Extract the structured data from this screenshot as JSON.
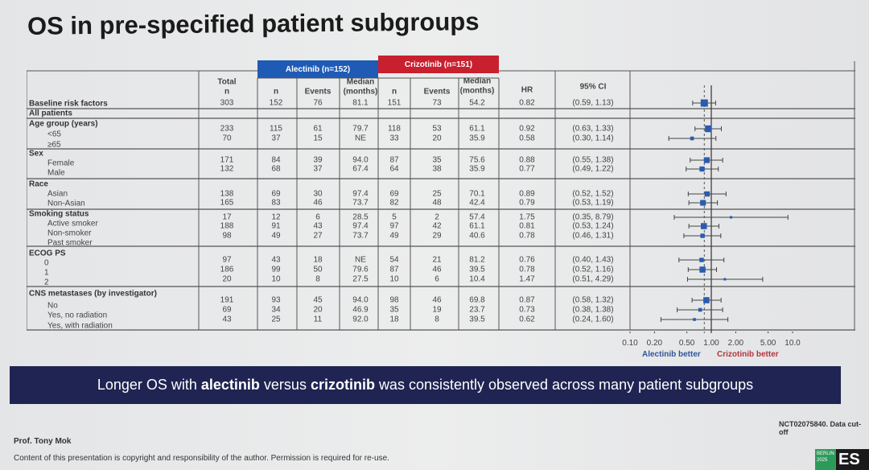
{
  "title": "OS in pre-specified patient subgroups",
  "table_headers": {
    "baseline": "Baseline risk factors",
    "total": "Total",
    "total_n": "n",
    "alectinib_arm": "Alectinib (n=152)",
    "crizotinib_arm": "Crizotinib (n=151)",
    "n": "n",
    "events": "Events",
    "median_1": "Median",
    "median_2": "(months)",
    "hr": "HR",
    "ci": "95% CI"
  },
  "colors": {
    "alectinib": "#1f5bb5",
    "crizotinib": "#c8202f",
    "banner": "#1f2452",
    "marker": "#2a5bb0"
  },
  "chart_data": {
    "type": "forest",
    "x_scale": "log",
    "xlim": [
      0.1,
      10
    ],
    "x_ticks": [
      "0.10",
      "0.20",
      "0.50",
      "1.00",
      "2.00",
      "5.00",
      "10.0"
    ],
    "reference_line": 1.0,
    "overall_hr_line": 0.82,
    "left_label": "Alectinib better",
    "right_label": "Crizotinib better",
    "groups": [
      {
        "label": "All patients",
        "rows": [
          {
            "label": "",
            "total": "303",
            "a_n": "152",
            "a_events": "76",
            "a_median": "81.1",
            "c_n": "151",
            "c_events": "73",
            "c_median": "54.2",
            "hr": 0.82,
            "hr_text": "0.82",
            "ci_low": 0.59,
            "ci_high": 1.13,
            "ci_text": "(0.59, 1.13)"
          }
        ]
      },
      {
        "label": "Age group (years)",
        "rows": [
          {
            "label": "<65",
            "total": "233",
            "a_n": "115",
            "a_events": "61",
            "a_median": "79.7",
            "c_n": "118",
            "c_events": "53",
            "c_median": "61.1",
            "hr": 0.92,
            "hr_text": "0.92",
            "ci_low": 0.63,
            "ci_high": 1.33,
            "ci_text": "(0.63, 1.33)"
          },
          {
            "label": "≥65",
            "total": "70",
            "a_n": "37",
            "a_events": "15",
            "a_median": "NE",
            "c_n": "33",
            "c_events": "20",
            "c_median": "35.9",
            "hr": 0.58,
            "hr_text": "0.58",
            "ci_low": 0.3,
            "ci_high": 1.14,
            "ci_text": "(0.30, 1.14)"
          }
        ]
      },
      {
        "label": "Sex",
        "rows": [
          {
            "label": "Female",
            "total": "171",
            "a_n": "84",
            "a_events": "39",
            "a_median": "94.0",
            "c_n": "87",
            "c_events": "35",
            "c_median": "75.6",
            "hr": 0.88,
            "hr_text": "0.88",
            "ci_low": 0.55,
            "ci_high": 1.38,
            "ci_text": "(0.55, 1.38)"
          },
          {
            "label": "Male",
            "total": "132",
            "a_n": "68",
            "a_events": "37",
            "a_median": "67.4",
            "c_n": "64",
            "c_events": "38",
            "c_median": "35.9",
            "hr": 0.77,
            "hr_text": "0.77",
            "ci_low": 0.49,
            "ci_high": 1.22,
            "ci_text": "(0.49, 1.22)"
          }
        ]
      },
      {
        "label": "Race",
        "rows": [
          {
            "label": "Asian",
            "total": "138",
            "a_n": "69",
            "a_events": "30",
            "a_median": "97.4",
            "c_n": "69",
            "c_events": "25",
            "c_median": "70.1",
            "hr": 0.89,
            "hr_text": "0.89",
            "ci_low": 0.52,
            "ci_high": 1.52,
            "ci_text": "(0.52, 1.52)"
          },
          {
            "label": "Non-Asian",
            "total": "165",
            "a_n": "83",
            "a_events": "46",
            "a_median": "73.7",
            "c_n": "82",
            "c_events": "48",
            "c_median": "42.4",
            "hr": 0.79,
            "hr_text": "0.79",
            "ci_low": 0.53,
            "ci_high": 1.19,
            "ci_text": "(0.53, 1.19)"
          }
        ]
      },
      {
        "label": "Smoking status",
        "rows": [
          {
            "label": "Active smoker",
            "total": "17",
            "a_n": "12",
            "a_events": "6",
            "a_median": "28.5",
            "c_n": "5",
            "c_events": "2",
            "c_median": "57.4",
            "hr": 1.75,
            "hr_text": "1.75",
            "ci_low": 0.35,
            "ci_high": 8.79,
            "ci_text": "(0.35, 8.79)"
          },
          {
            "label": "Non-smoker",
            "total": "188",
            "a_n": "91",
            "a_events": "43",
            "a_median": "97.4",
            "c_n": "97",
            "c_events": "42",
            "c_median": "61.1",
            "hr": 0.81,
            "hr_text": "0.81",
            "ci_low": 0.53,
            "ci_high": 1.24,
            "ci_text": "(0.53, 1.24)"
          },
          {
            "label": "Past smoker",
            "total": "98",
            "a_n": "49",
            "a_events": "27",
            "a_median": "73.7",
            "c_n": "49",
            "c_events": "29",
            "c_median": "40.6",
            "hr": 0.78,
            "hr_text": "0.78",
            "ci_low": 0.46,
            "ci_high": 1.31,
            "ci_text": "(0.46, 1.31)"
          }
        ]
      },
      {
        "label": "ECOG PS",
        "rows": [
          {
            "label": "0",
            "total": "97",
            "a_n": "43",
            "a_events": "18",
            "a_median": "NE",
            "c_n": "54",
            "c_events": "21",
            "c_median": "81.2",
            "hr": 0.76,
            "hr_text": "0.76",
            "ci_low": 0.4,
            "ci_high": 1.43,
            "ci_text": "(0.40, 1.43)"
          },
          {
            "label": "1",
            "total": "186",
            "a_n": "99",
            "a_events": "50",
            "a_median": "79.6",
            "c_n": "87",
            "c_events": "46",
            "c_median": "39.5",
            "hr": 0.78,
            "hr_text": "0.78",
            "ci_low": 0.52,
            "ci_high": 1.16,
            "ci_text": "(0.52, 1.16)"
          },
          {
            "label": "2",
            "total": "20",
            "a_n": "10",
            "a_events": "8",
            "a_median": "27.5",
            "c_n": "10",
            "c_events": "6",
            "c_median": "10.4",
            "hr": 1.47,
            "hr_text": "1.47",
            "ci_low": 0.51,
            "ci_high": 4.29,
            "ci_text": "(0.51, 4.29)"
          }
        ]
      },
      {
        "label": "CNS metastases (by investigator)",
        "rows": [
          {
            "label": "No",
            "total": "191",
            "a_n": "93",
            "a_events": "45",
            "a_median": "94.0",
            "c_n": "98",
            "c_events": "46",
            "c_median": "69.8",
            "hr": 0.87,
            "hr_text": "0.87",
            "ci_low": 0.58,
            "ci_high": 1.32,
            "ci_text": "(0.58, 1.32)"
          },
          {
            "label": "Yes, no radiation",
            "total": "69",
            "a_n": "34",
            "a_events": "20",
            "a_median": "46.9",
            "c_n": "35",
            "c_events": "19",
            "c_median": "23.7",
            "hr": 0.73,
            "hr_text": "0.73",
            "ci_low": 0.38,
            "ci_high": 1.38,
            "ci_text": "(0.38, 1.38)"
          },
          {
            "label": "Yes, with radiation",
            "total": "43",
            "a_n": "25",
            "a_events": "11",
            "a_median": "92.0",
            "c_n": "18",
            "c_events": "8",
            "c_median": "39.5",
            "hr": 0.62,
            "hr_text": "0.62",
            "ci_low": 0.24,
            "ci_high": 1.6,
            "ci_text": "(0.24, 1.60)"
          }
        ]
      }
    ]
  },
  "banner": {
    "part1": "Longer OS with",
    "bold1": "alectinib",
    "part2": "versus",
    "bold2": "crizotinib",
    "part3": "was consistently observed across many patient subgroups"
  },
  "footer": {
    "trial": "NCT02075840. Data cut-off",
    "presenter": "Prof. Tony Mok",
    "copyright": "Content of this presentation is copyright and responsibility of the author. Permission is required for re-use.",
    "logo_city": "BERLIN",
    "logo_year": "2025",
    "logo_text": "ES"
  }
}
